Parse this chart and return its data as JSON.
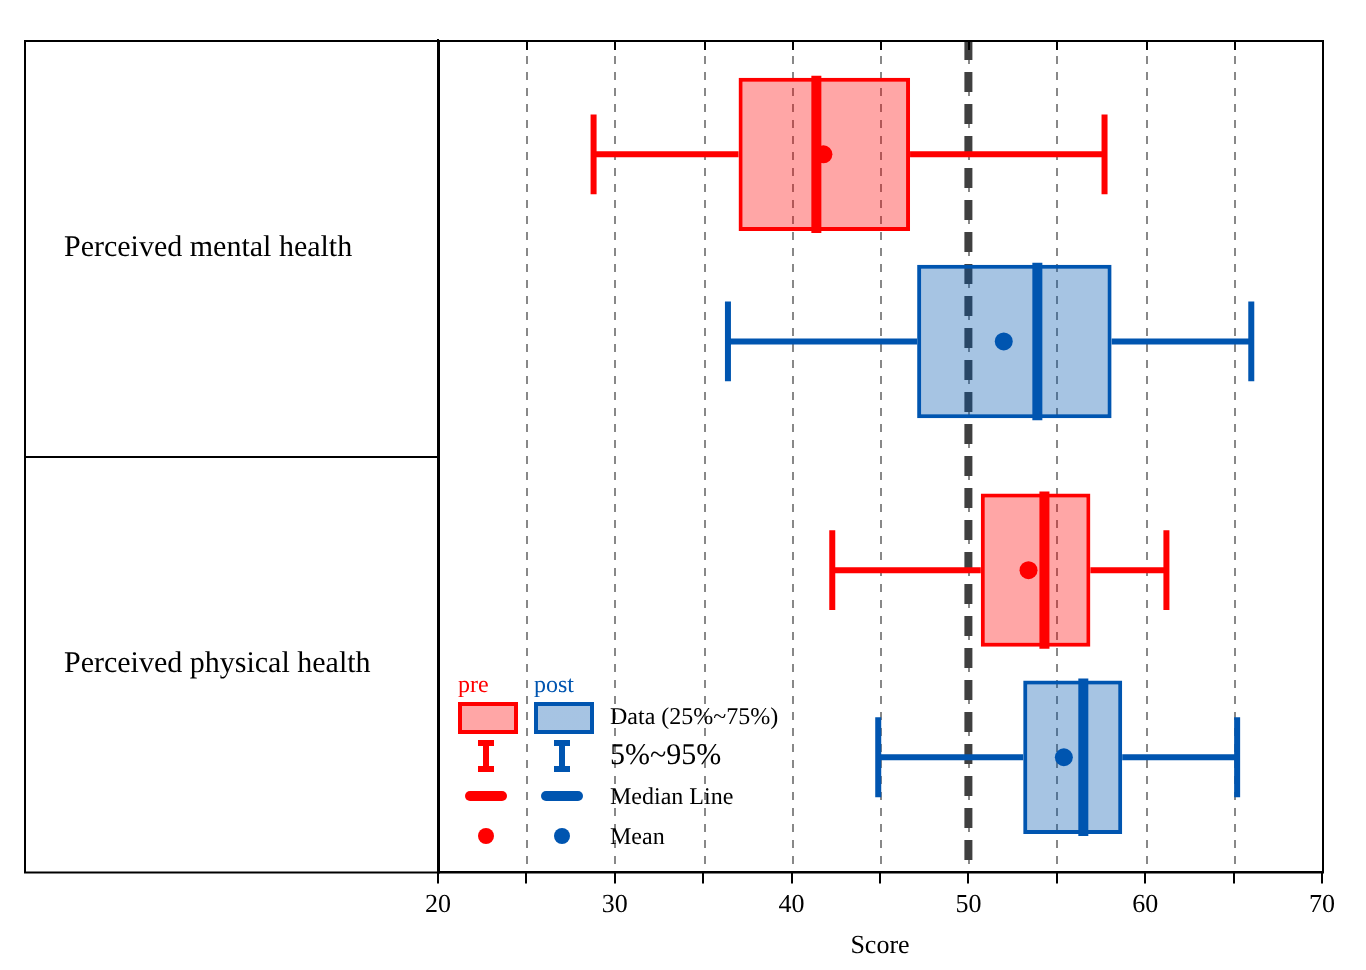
{
  "chart_data": {
    "type": "box",
    "orientation": "horizontal",
    "categories": [
      "Perceived mental health",
      "Perceived physical health"
    ],
    "series": [
      {
        "name": "pre",
        "color": "#ff0000",
        "boxes": [
          {
            "low": 28.8,
            "q1": 37.0,
            "median": 41.4,
            "q3": 46.7,
            "high": 57.7,
            "mean": 41.8
          },
          {
            "low": 42.3,
            "q1": 50.7,
            "median": 54.3,
            "q3": 56.9,
            "high": 61.2,
            "mean": 53.4
          }
        ]
      },
      {
        "name": "post",
        "color": "#0055b0",
        "boxes": [
          {
            "low": 36.4,
            "q1": 47.1,
            "median": 53.9,
            "q3": 58.1,
            "high": 66.0,
            "mean": 52.0
          },
          {
            "low": 44.9,
            "q1": 53.1,
            "median": 56.5,
            "q3": 58.7,
            "high": 65.2,
            "mean": 55.4
          }
        ]
      }
    ],
    "xlabel": "Score",
    "xlim": [
      20,
      70
    ],
    "xticks": [
      20,
      {
        "value": 25,
        "label": null
      },
      30,
      {
        "value": 35,
        "label": null
      },
      40,
      {
        "value": 45,
        "label": null
      },
      50,
      {
        "value": 55,
        "label": null
      },
      60,
      {
        "value": 65,
        "label": null
      },
      70
    ],
    "grid": "x",
    "ref_lines": [
      {
        "axis": "x",
        "value": 50,
        "color": "#404040",
        "line_style": "dashed"
      }
    ],
    "legend": "bottom left",
    "annotations": [
      "Data (25%~75%)",
      "5%~95%",
      "Median Line",
      "Mean"
    ]
  }
}
